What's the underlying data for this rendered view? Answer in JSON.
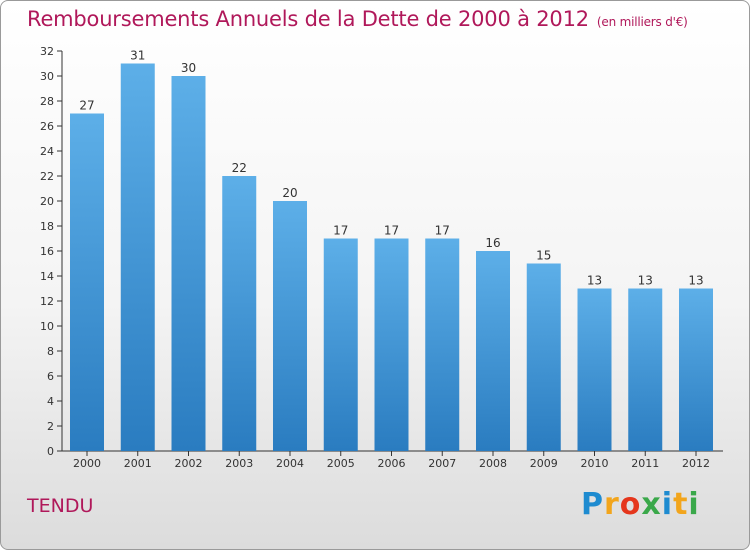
{
  "title": "Remboursements Annuels de la Dette de 2000 à 2012",
  "subtitle": "(en milliers d'€)",
  "commune": "TENDU",
  "logo_text": "Proxiti",
  "colors": {
    "title": "#b0185a",
    "bar_top": "#5dafe8",
    "bar_bottom": "#2a7cc0"
  },
  "chart_data": {
    "type": "bar",
    "title": "Remboursements Annuels de la Dette de 2000 à 2012",
    "subtitle": "(en milliers d'€)",
    "xlabel": "",
    "ylabel": "",
    "categories": [
      "2000",
      "2001",
      "2002",
      "2003",
      "2004",
      "2005",
      "2006",
      "2007",
      "2008",
      "2009",
      "2010",
      "2011",
      "2012"
    ],
    "values": [
      27,
      31,
      30,
      22,
      20,
      17,
      17,
      17,
      16,
      15,
      13,
      13,
      13
    ],
    "ylim": [
      0,
      32
    ],
    "yticks": [
      0,
      2,
      4,
      6,
      8,
      10,
      12,
      14,
      16,
      18,
      20,
      22,
      24,
      26,
      28,
      30,
      32
    ],
    "grid": false,
    "legend": "none"
  }
}
